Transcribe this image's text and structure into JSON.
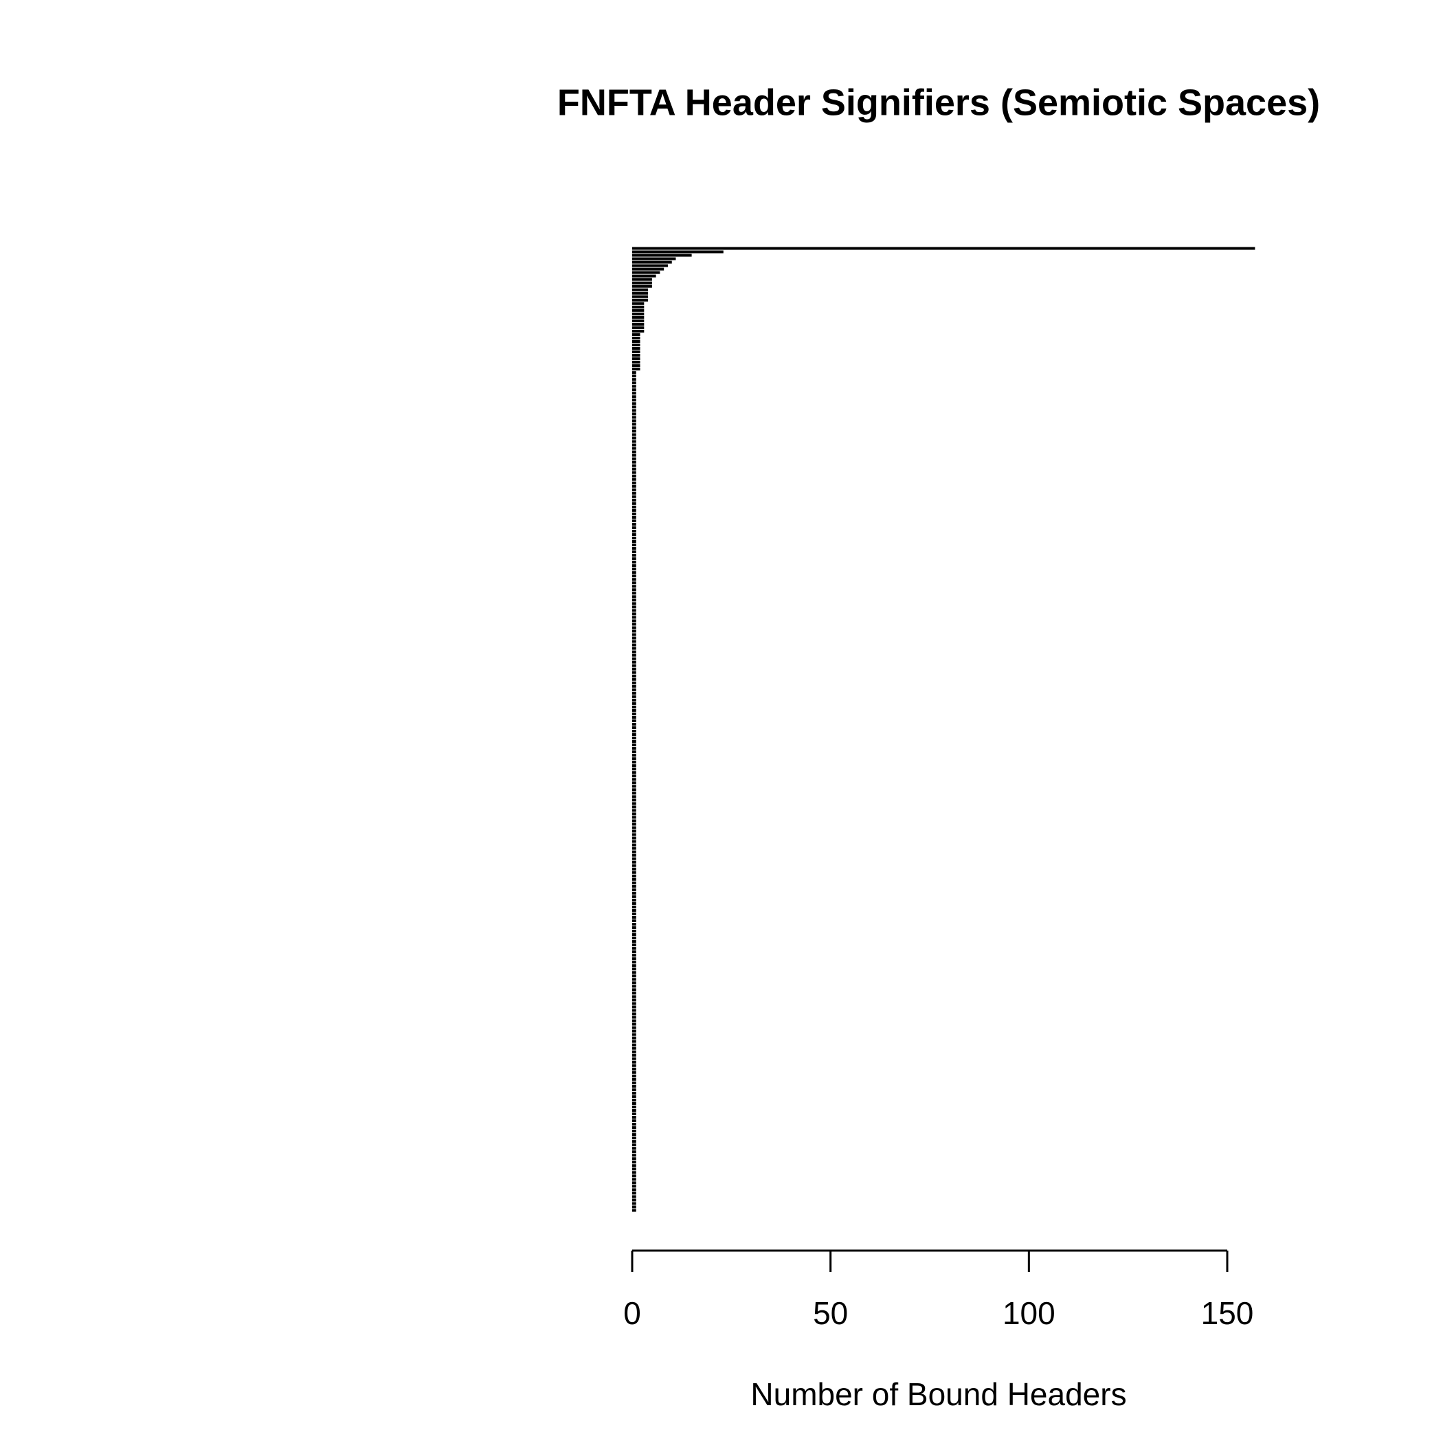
{
  "chart_data": {
    "type": "barh",
    "title": "FNFTA Header Signifiers (Semiotic Spaces)",
    "x_label": "Number of Bound Headers",
    "color": "#000000",
    "xlim": [
      0,
      160
    ],
    "xticks": [
      0,
      50,
      100,
      150
    ],
    "categories": [
      null,
      null,
      null,
      null,
      null,
      null,
      null,
      null,
      null,
      null,
      null,
      null,
      null,
      null,
      null,
      null,
      null,
      null,
      null,
      null,
      null,
      null,
      null,
      null,
      null,
      null,
      null,
      null,
      null,
      null,
      null,
      null,
      null,
      null,
      null,
      null,
      null,
      null,
      null,
      null,
      null,
      null,
      null,
      null,
      null,
      null,
      null,
      null,
      null,
      null,
      null,
      null,
      null,
      null,
      null,
      null,
      null,
      null,
      null,
      null,
      null,
      null,
      null,
      null,
      null,
      null,
      null,
      null,
      null,
      null,
      null,
      null,
      null,
      null,
      null,
      null,
      null,
      null,
      null,
      null,
      null,
      null,
      null,
      null,
      null,
      null,
      null,
      null,
      null,
      null,
      null,
      null,
      null,
      null,
      null,
      null,
      null,
      null,
      null,
      null,
      null,
      null,
      null,
      null,
      null,
      null,
      null,
      null,
      null,
      null,
      null,
      null,
      null,
      null,
      null,
      null,
      null,
      null,
      null,
      null,
      null,
      null,
      null,
      null,
      null,
      null,
      null,
      null,
      null,
      null,
      null,
      null,
      null,
      null,
      null,
      null,
      null,
      null,
      null,
      null,
      null,
      null,
      null,
      null,
      null,
      null,
      null,
      null,
      null,
      null,
      null,
      null,
      null,
      null,
      null,
      null,
      null,
      null,
      null,
      null,
      null,
      null,
      null,
      null,
      null,
      null,
      null,
      null,
      null,
      null,
      null,
      null,
      null,
      null,
      null,
      null,
      null,
      null,
      null,
      null,
      null,
      null,
      null,
      null,
      null,
      null,
      null,
      null,
      null,
      null,
      null,
      null,
      null,
      null,
      null,
      null,
      null,
      null,
      null,
      null,
      null,
      null,
      null,
      null,
      null,
      null,
      null,
      null,
      null,
      null,
      null,
      null,
      null,
      null,
      null,
      null,
      null,
      null,
      null,
      null,
      null,
      null,
      null,
      null,
      null,
      null,
      null,
      null,
      null,
      null,
      null,
      null,
      null,
      null,
      null,
      null,
      null,
      null,
      null,
      null,
      null,
      null,
      null,
      null,
      null,
      null,
      null,
      null,
      null,
      null,
      null,
      null,
      null,
      null,
      null,
      null,
      null,
      null,
      null,
      null,
      null,
      null,
      null,
      null,
      null,
      null,
      null,
      null,
      null,
      null,
      null,
      null,
      null,
      null,
      null,
      null,
      null,
      null,
      null,
      null
    ],
    "values": [
      157,
      23,
      15,
      11,
      10,
      9,
      8,
      7,
      6,
      5,
      5,
      5,
      4,
      4,
      4,
      4,
      3,
      3,
      3,
      3,
      3,
      3,
      3,
      3,
      3,
      2,
      2,
      2,
      2,
      2,
      2,
      2,
      2,
      2,
      2,
      2,
      1,
      1,
      1,
      1,
      1,
      1,
      1,
      1,
      1,
      1,
      1,
      1,
      1,
      1,
      1,
      1,
      1,
      1,
      1,
      1,
      1,
      1,
      1,
      1,
      1,
      1,
      1,
      1,
      1,
      1,
      1,
      1,
      1,
      1,
      1,
      1,
      1,
      1,
      1,
      1,
      1,
      1,
      1,
      1,
      1,
      1,
      1,
      1,
      1,
      1,
      1,
      1,
      1,
      1,
      1,
      1,
      1,
      1,
      1,
      1,
      1,
      1,
      1,
      1,
      1,
      1,
      1,
      1,
      1,
      1,
      1,
      1,
      1,
      1,
      1,
      1,
      1,
      1,
      1,
      1,
      1,
      1,
      1,
      1,
      1,
      1,
      1,
      1,
      1,
      1,
      1,
      1,
      1,
      1,
      1,
      1,
      1,
      1,
      1,
      1,
      1,
      1,
      1,
      1,
      1,
      1,
      1,
      1,
      1,
      1,
      1,
      1,
      1,
      1,
      1,
      1,
      1,
      1,
      1,
      1,
      1,
      1,
      1,
      1,
      1,
      1,
      1,
      1,
      1,
      1,
      1,
      1,
      1,
      1,
      1,
      1,
      1,
      1,
      1,
      1,
      1,
      1,
      1,
      1,
      1,
      1,
      1,
      1,
      1,
      1,
      1,
      1,
      1,
      1,
      1,
      1,
      1,
      1,
      1,
      1,
      1,
      1,
      1,
      1,
      1,
      1,
      1,
      1,
      1,
      1,
      1,
      1,
      1,
      1,
      1,
      1,
      1,
      1,
      1,
      1,
      1,
      1,
      1,
      1,
      1,
      1,
      1,
      1,
      1,
      1,
      1,
      1,
      1,
      1,
      1,
      1,
      1,
      1,
      1,
      1,
      1,
      1,
      1,
      1,
      1,
      1,
      1,
      1,
      1,
      1,
      1,
      1,
      1,
      1,
      1,
      1,
      1,
      1,
      1,
      1,
      1,
      1,
      1,
      1,
      1,
      1,
      1,
      1,
      1,
      1,
      1,
      1,
      1,
      1,
      1,
      1,
      1,
      1,
      1,
      1,
      1,
      1,
      1,
      1
    ]
  }
}
